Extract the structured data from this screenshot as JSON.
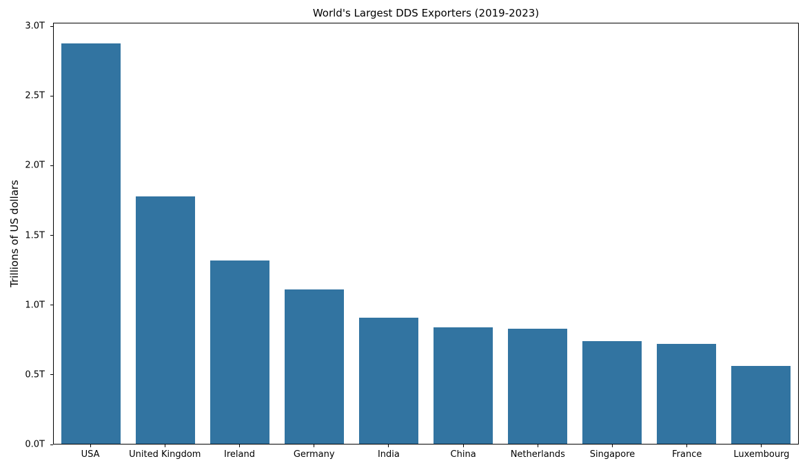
{
  "chart_data": {
    "type": "bar",
    "title": "World's Largest DDS Exporters (2019-2023)",
    "xlabel": "",
    "ylabel": "Trillions of US dollars",
    "categories": [
      "USA",
      "United Kingdom",
      "Ireland",
      "Germany",
      "India",
      "China",
      "Netherlands",
      "Singapore",
      "France",
      "Luxembourg"
    ],
    "values": [
      2.88,
      1.78,
      1.32,
      1.11,
      0.91,
      0.84,
      0.83,
      0.74,
      0.72,
      0.56
    ],
    "unit": "T",
    "ylim": [
      0,
      3.025
    ],
    "yticks": [
      {
        "value": 0.0,
        "label": "0.0T"
      },
      {
        "value": 0.5,
        "label": "0.5T"
      },
      {
        "value": 1.0,
        "label": "1.0T"
      },
      {
        "value": 1.5,
        "label": "1.5T"
      },
      {
        "value": 2.0,
        "label": "2.0T"
      },
      {
        "value": 2.5,
        "label": "2.5T"
      },
      {
        "value": 3.0,
        "label": "3.0T"
      }
    ],
    "grid": false,
    "legend": "none",
    "bar_color": "#3274a1",
    "axis_color": "#000000",
    "background_color": "#ffffff"
  }
}
